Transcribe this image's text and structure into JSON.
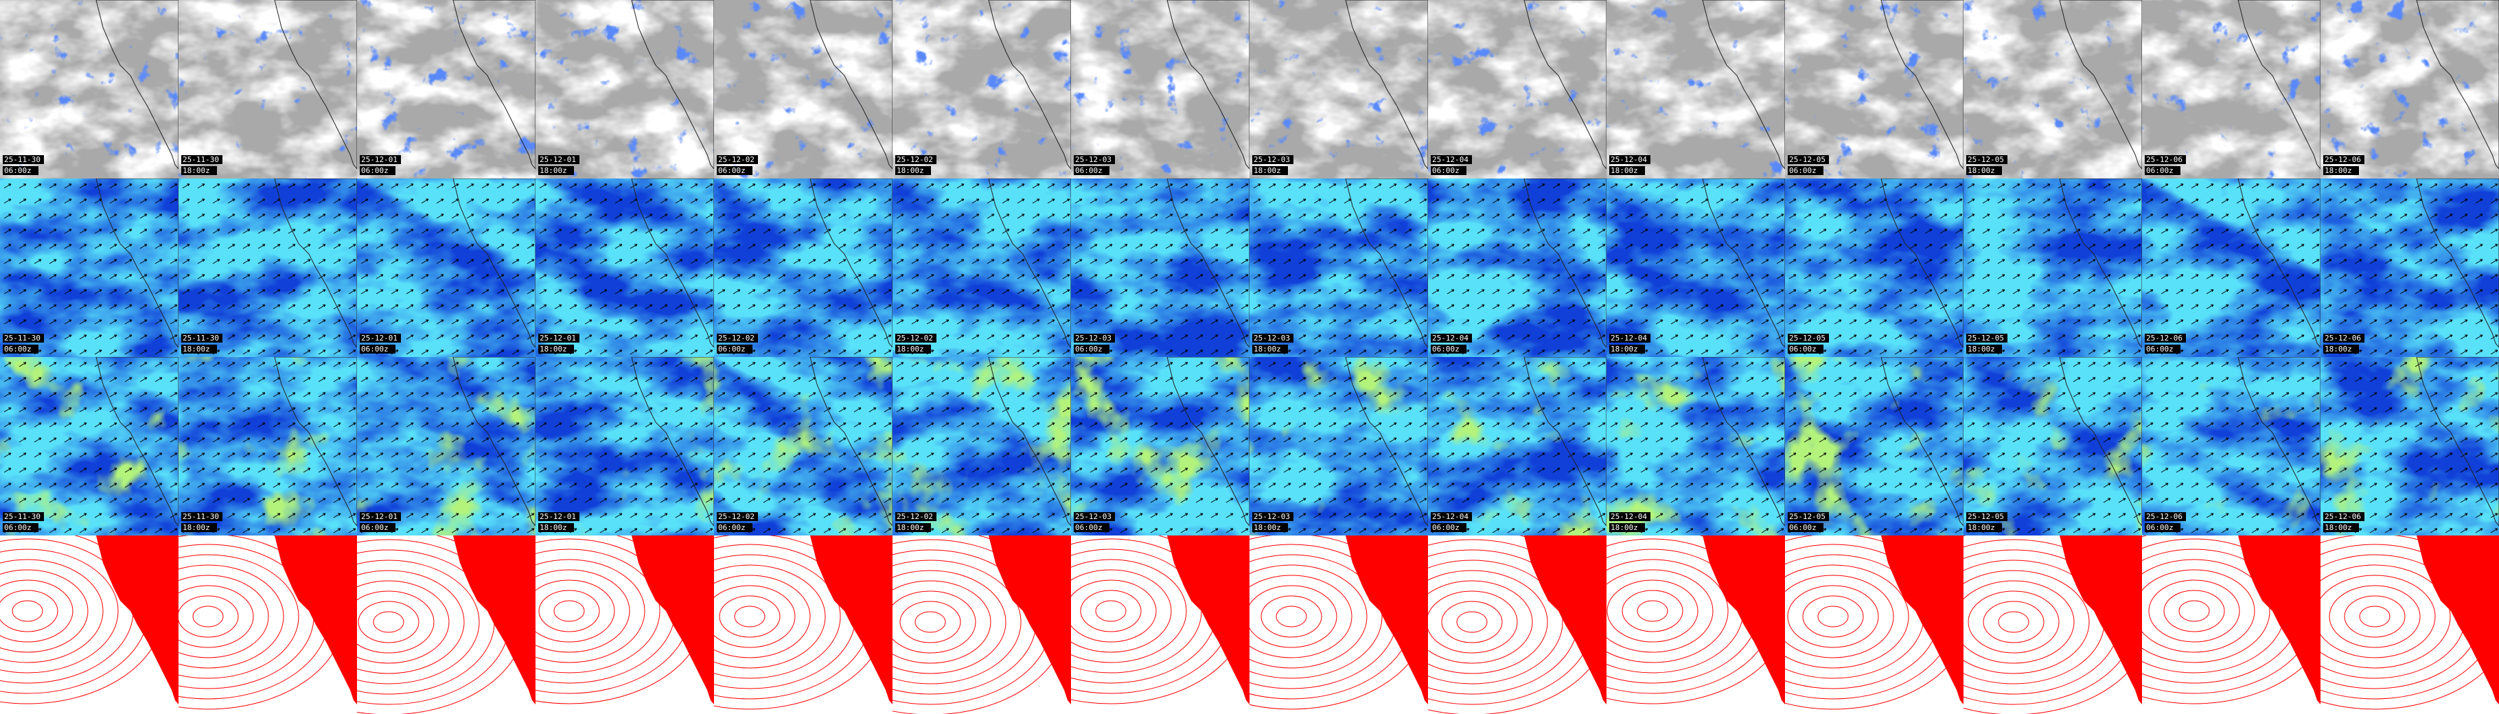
{
  "frames": [
    {
      "date": "25-11-30",
      "time": "06:00z"
    },
    {
      "date": "25-11-30",
      "time": "18:00z"
    },
    {
      "date": "25-12-01",
      "time": "06:00z"
    },
    {
      "date": "25-12-01",
      "time": "18:00z"
    },
    {
      "date": "25-12-02",
      "time": "06:00z"
    },
    {
      "date": "25-12-02",
      "time": "18:00z"
    },
    {
      "date": "25-12-03",
      "time": "06:00z"
    },
    {
      "date": "25-12-03",
      "time": "18:00z"
    },
    {
      "date": "25-12-04",
      "time": "06:00z"
    },
    {
      "date": "25-12-04",
      "time": "18:00z"
    },
    {
      "date": "25-12-05",
      "time": "06:00z"
    },
    {
      "date": "25-12-05",
      "time": "18:00z"
    },
    {
      "date": "25-12-06",
      "time": "06:00z"
    },
    {
      "date": "25-12-06",
      "time": "18:00z"
    }
  ]
}
